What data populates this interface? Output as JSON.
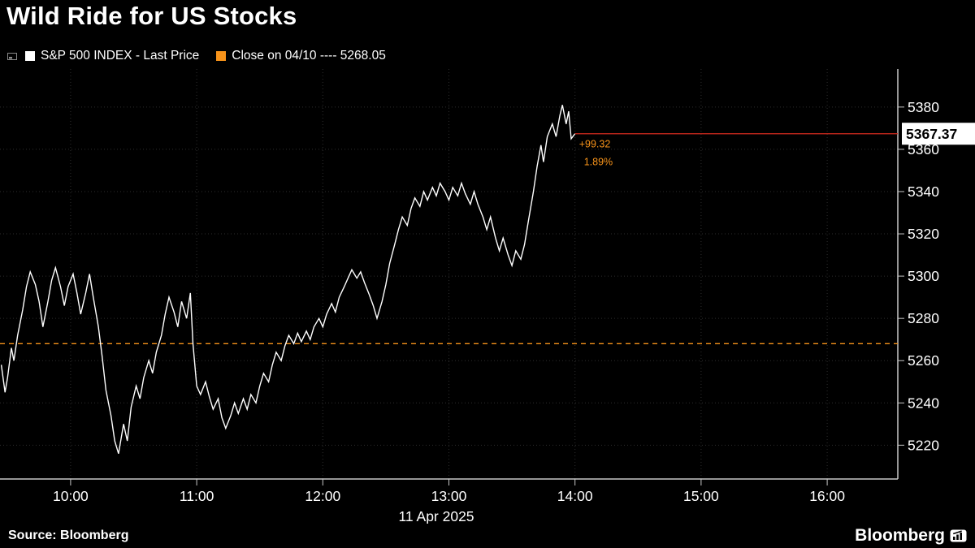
{
  "header": {
    "title": "Wild Ride for US Stocks"
  },
  "legend": {
    "series_label": "S&P 500 INDEX - Last Price",
    "close_label": "Close on 04/10 ---- 5268.05"
  },
  "footer": {
    "source": "Source:  Bloomberg",
    "logo_text": "Bloomberg"
  },
  "chart_data": {
    "type": "line",
    "title": "Wild Ride for US Stocks",
    "series_name": "S&P 500 INDEX - Last Price",
    "date_label": "11 Apr 2025",
    "last_price": 5367.37,
    "last_price_label": "5367.37",
    "change_label": "+99.32",
    "change_pct_label": "1.89%",
    "close_value": 5268.05,
    "close_date": "04/10",
    "y_ticks": [
      5220,
      5240,
      5260,
      5280,
      5300,
      5320,
      5340,
      5360,
      5380
    ],
    "x_ticks": [
      {
        "t": 10,
        "label": "10:00"
      },
      {
        "t": 11,
        "label": "11:00"
      },
      {
        "t": 12,
        "label": "12:00"
      },
      {
        "t": 13,
        "label": "13:00"
      },
      {
        "t": 14,
        "label": "14:00"
      },
      {
        "t": 15,
        "label": "15:00"
      },
      {
        "t": 16,
        "label": "16:00"
      }
    ],
    "x_domain": [
      9.44,
      16.56
    ],
    "y_domain": [
      5204,
      5398
    ],
    "grid": true,
    "legend_position": "top-left",
    "colors": {
      "background": "#000000",
      "line": "#ffffff",
      "close_line": "#f7931a",
      "last_line": "#d92b1f",
      "grid": "#2e2e2e",
      "axis": "#c8c8c8",
      "tick_text": "#ffffff",
      "annotation": "#f7931a",
      "price_label_bg": "#ffffff",
      "price_label_text": "#000000"
    },
    "series": [
      {
        "name": "S&P 500 INDEX - Last Price",
        "points": [
          [
            9.45,
            5258
          ],
          [
            9.48,
            5245
          ],
          [
            9.5,
            5252
          ],
          [
            9.53,
            5266
          ],
          [
            9.55,
            5260
          ],
          [
            9.58,
            5272
          ],
          [
            9.62,
            5284
          ],
          [
            9.65,
            5295
          ],
          [
            9.68,
            5302
          ],
          [
            9.72,
            5296
          ],
          [
            9.75,
            5288
          ],
          [
            9.78,
            5276
          ],
          [
            9.82,
            5288
          ],
          [
            9.85,
            5298
          ],
          [
            9.88,
            5304
          ],
          [
            9.92,
            5295
          ],
          [
            9.95,
            5286
          ],
          [
            9.98,
            5295
          ],
          [
            10.02,
            5301
          ],
          [
            10.05,
            5292
          ],
          [
            10.08,
            5282
          ],
          [
            10.12,
            5292
          ],
          [
            10.15,
            5301
          ],
          [
            10.18,
            5290
          ],
          [
            10.22,
            5276
          ],
          [
            10.25,
            5262
          ],
          [
            10.28,
            5246
          ],
          [
            10.32,
            5234
          ],
          [
            10.35,
            5222
          ],
          [
            10.38,
            5216
          ],
          [
            10.42,
            5230
          ],
          [
            10.45,
            5222
          ],
          [
            10.48,
            5238
          ],
          [
            10.52,
            5248
          ],
          [
            10.55,
            5242
          ],
          [
            10.58,
            5252
          ],
          [
            10.62,
            5260
          ],
          [
            10.65,
            5254
          ],
          [
            10.68,
            5264
          ],
          [
            10.72,
            5272
          ],
          [
            10.75,
            5282
          ],
          [
            10.78,
            5290
          ],
          [
            10.82,
            5283
          ],
          [
            10.85,
            5276
          ],
          [
            10.88,
            5288
          ],
          [
            10.92,
            5280
          ],
          [
            10.95,
            5292
          ],
          [
            10.97,
            5268
          ],
          [
            11.0,
            5248
          ],
          [
            11.03,
            5244
          ],
          [
            11.07,
            5250
          ],
          [
            11.1,
            5243
          ],
          [
            11.13,
            5237
          ],
          [
            11.17,
            5242
          ],
          [
            11.2,
            5233
          ],
          [
            11.23,
            5228
          ],
          [
            11.27,
            5234
          ],
          [
            11.3,
            5240
          ],
          [
            11.33,
            5235
          ],
          [
            11.37,
            5242
          ],
          [
            11.4,
            5237
          ],
          [
            11.43,
            5244
          ],
          [
            11.47,
            5240
          ],
          [
            11.5,
            5248
          ],
          [
            11.53,
            5254
          ],
          [
            11.57,
            5250
          ],
          [
            11.6,
            5258
          ],
          [
            11.63,
            5264
          ],
          [
            11.67,
            5260
          ],
          [
            11.7,
            5267
          ],
          [
            11.73,
            5272
          ],
          [
            11.77,
            5268
          ],
          [
            11.8,
            5273
          ],
          [
            11.83,
            5269
          ],
          [
            11.87,
            5274
          ],
          [
            11.9,
            5270
          ],
          [
            11.93,
            5276
          ],
          [
            11.97,
            5280
          ],
          [
            12.0,
            5276
          ],
          [
            12.03,
            5282
          ],
          [
            12.07,
            5287
          ],
          [
            12.1,
            5283
          ],
          [
            12.13,
            5290
          ],
          [
            12.17,
            5295
          ],
          [
            12.2,
            5299
          ],
          [
            12.23,
            5303
          ],
          [
            12.27,
            5299
          ],
          [
            12.3,
            5302
          ],
          [
            12.33,
            5297
          ],
          [
            12.37,
            5291
          ],
          [
            12.4,
            5286
          ],
          [
            12.43,
            5280
          ],
          [
            12.47,
            5288
          ],
          [
            12.5,
            5296
          ],
          [
            12.53,
            5306
          ],
          [
            12.57,
            5315
          ],
          [
            12.6,
            5322
          ],
          [
            12.63,
            5328
          ],
          [
            12.67,
            5324
          ],
          [
            12.7,
            5332
          ],
          [
            12.73,
            5337
          ],
          [
            12.77,
            5333
          ],
          [
            12.8,
            5340
          ],
          [
            12.83,
            5336
          ],
          [
            12.87,
            5342
          ],
          [
            12.9,
            5338
          ],
          [
            12.93,
            5344
          ],
          [
            12.97,
            5340
          ],
          [
            13.0,
            5336
          ],
          [
            13.03,
            5342
          ],
          [
            13.07,
            5338
          ],
          [
            13.1,
            5344
          ],
          [
            13.13,
            5339
          ],
          [
            13.17,
            5334
          ],
          [
            13.2,
            5340
          ],
          [
            13.23,
            5334
          ],
          [
            13.27,
            5328
          ],
          [
            13.3,
            5322
          ],
          [
            13.33,
            5328
          ],
          [
            13.37,
            5318
          ],
          [
            13.4,
            5312
          ],
          [
            13.43,
            5318
          ],
          [
            13.47,
            5310
          ],
          [
            13.5,
            5305
          ],
          [
            13.53,
            5312
          ],
          [
            13.57,
            5308
          ],
          [
            13.6,
            5315
          ],
          [
            13.63,
            5326
          ],
          [
            13.67,
            5340
          ],
          [
            13.7,
            5352
          ],
          [
            13.73,
            5362
          ],
          [
            13.75,
            5354
          ],
          [
            13.78,
            5366
          ],
          [
            13.82,
            5372
          ],
          [
            13.85,
            5366
          ],
          [
            13.88,
            5376
          ],
          [
            13.9,
            5381
          ],
          [
            13.93,
            5372
          ],
          [
            13.95,
            5378
          ],
          [
            13.97,
            5365
          ],
          [
            14.0,
            5367.37
          ]
        ]
      }
    ]
  }
}
